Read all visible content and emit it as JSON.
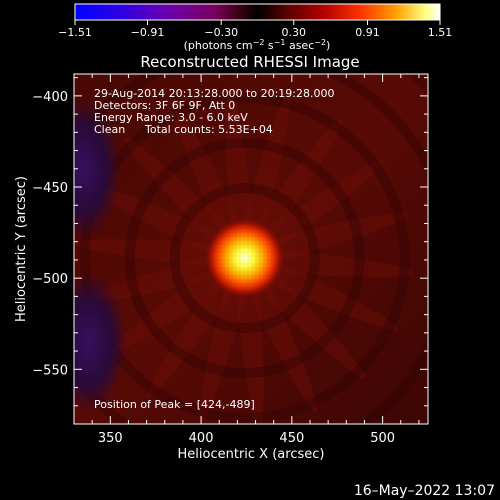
{
  "chart_data": {
    "type": "heatmap",
    "title": "Reconstructed RHESSI Image",
    "xlabel": "Heliocentric X (arcsec)",
    "ylabel": "Heliocentric Y (arcsec)",
    "xlim": [
      330,
      525
    ],
    "ylim": [
      -580,
      -388
    ],
    "x_ticks": [
      350,
      400,
      450,
      500
    ],
    "y_ticks": [
      -400,
      -450,
      -500,
      -550
    ],
    "x_tick_labels": [
      "350",
      "400",
      "450",
      "500"
    ],
    "y_tick_labels": [
      "−400",
      "−450",
      "−500",
      "−550"
    ],
    "colorbar": {
      "min": -1.51,
      "max": 1.51,
      "ticks": [
        -1.51,
        -0.91,
        -0.3,
        0.3,
        0.91,
        1.51
      ],
      "tick_labels": [
        "−1.51",
        "−0.91",
        "−0.30",
        "0.30",
        "0.91",
        "1.51"
      ],
      "units_prefix": "(photons cm",
      "units_exp1": "−2",
      "units_mid": " s",
      "units_exp2": "−1",
      "units_mid2": " asec",
      "units_exp3": "−2",
      "units_suffix": ")"
    },
    "annotations": {
      "time_range": "29-Aug-2014 20:13:28.000 to 20:19:28.000",
      "detectors": "Detectors: 3F 6F 9F, Att 0",
      "energy": "Energy Range: 3.0 - 6.0 keV",
      "method": "Clean",
      "counts": "Total counts: 5.53E+04",
      "peak": "Position of Peak = [424,-489]"
    },
    "peak": {
      "x": 424,
      "y": -489,
      "value": 1.51
    },
    "background_level": 0.35,
    "negative_regions": [
      {
        "x": 335,
        "y": -440,
        "value": -0.5
      },
      {
        "x": 338,
        "y": -535,
        "value": -0.4
      }
    ],
    "date_stamp": "16–May–2022 13:07",
    "colors": {
      "background": "#000000",
      "text": "#ffffff"
    }
  }
}
